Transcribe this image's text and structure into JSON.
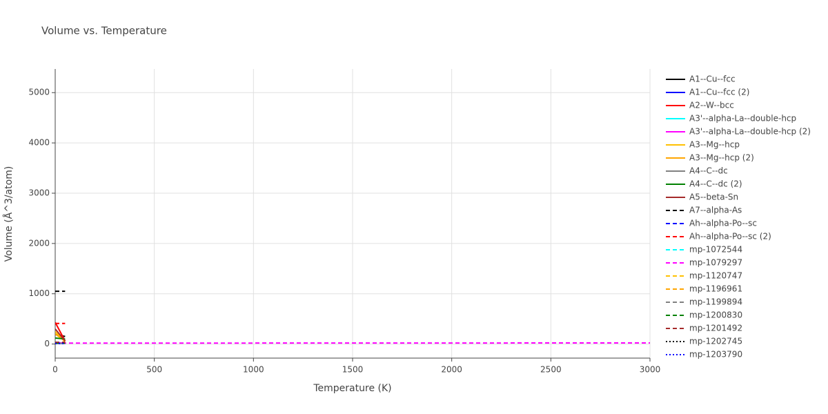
{
  "chart_data": {
    "type": "line",
    "title": "Volume vs. Temperature",
    "x_label": "Temperature (K)",
    "y_label": "Volume (Å^3/atom)",
    "xlim": [
      0,
      3000
    ],
    "ylim": [
      -280,
      5470
    ],
    "xticks": [
      0,
      500,
      1000,
      1500,
      2000,
      2500,
      3000
    ],
    "yticks": [
      0,
      1000,
      2000,
      3000,
      4000,
      5000
    ],
    "grid": true,
    "legend": "right",
    "series": [
      {
        "name": "A1--Cu--fcc",
        "color": "#000000",
        "dash": "solid",
        "x": [
          0,
          50
        ],
        "values": [
          190,
          150
        ]
      },
      {
        "name": "A1--Cu--fcc (2)",
        "color": "#0000ff",
        "dash": "solid",
        "x": [
          0,
          50
        ],
        "values": [
          12,
          12
        ]
      },
      {
        "name": "A2--W--bcc",
        "color": "#ff0000",
        "dash": "solid",
        "x": [
          0,
          50
        ],
        "values": [
          430,
          60
        ]
      },
      {
        "name": "A3'--alpha-La--double-hcp",
        "color": "#00ffff",
        "dash": "solid",
        "x": [
          0,
          50
        ],
        "values": [
          22,
          22
        ]
      },
      {
        "name": "A3'--alpha-La--double-hcp (2)",
        "color": "#ff00ff",
        "dash": "solid",
        "x": [
          0,
          50
        ],
        "values": [
          24,
          24
        ]
      },
      {
        "name": "A3--Mg--hcp",
        "color": "#ffc000",
        "dash": "solid",
        "x": [
          0,
          50
        ],
        "values": [
          250,
          40
        ]
      },
      {
        "name": "A3--Mg--hcp (2)",
        "color": "#ffa500",
        "dash": "solid",
        "x": [
          0,
          50
        ],
        "values": [
          200,
          60
        ]
      },
      {
        "name": "A4--C--dc",
        "color": "#808080",
        "dash": "solid",
        "x": [
          0,
          50
        ],
        "values": [
          15,
          15
        ]
      },
      {
        "name": "A4--C--dc (2)",
        "color": "#008000",
        "dash": "solid",
        "x": [
          0,
          50
        ],
        "values": [
          120,
          100
        ]
      },
      {
        "name": "A5--beta-Sn",
        "color": "#a52a2a",
        "dash": "solid",
        "x": [
          0,
          50
        ],
        "values": [
          300,
          60
        ]
      },
      {
        "name": "A7--alpha-As",
        "color": "#000000",
        "dash": "dash",
        "x": [
          0,
          50
        ],
        "values": [
          1050,
          1050
        ]
      },
      {
        "name": "Ah--alpha-Po--sc",
        "color": "#0000ff",
        "dash": "dash",
        "x": [
          0,
          50
        ],
        "values": [
          30,
          30
        ]
      },
      {
        "name": "Ah--alpha-Po--sc (2)",
        "color": "#ff0000",
        "dash": "dash",
        "x": [
          0,
          50
        ],
        "values": [
          410,
          410
        ]
      },
      {
        "name": "mp-1072544",
        "color": "#00ffff",
        "dash": "dash",
        "x": [
          0,
          50
        ],
        "values": [
          20,
          20
        ]
      },
      {
        "name": "mp-1079297",
        "color": "#ff00ff",
        "dash": "dash",
        "x": [
          0,
          3000
        ],
        "values": [
          18,
          22
        ]
      },
      {
        "name": "mp-1120747",
        "color": "#ffc000",
        "dash": "dash",
        "x": [
          0,
          50
        ],
        "values": [
          25,
          25
        ]
      },
      {
        "name": "mp-1196961",
        "color": "#ffa500",
        "dash": "dash",
        "x": [
          0,
          50
        ],
        "values": [
          28,
          28
        ]
      },
      {
        "name": "mp-1199894",
        "color": "#808080",
        "dash": "dash",
        "x": [
          0,
          50
        ],
        "values": [
          16,
          16
        ]
      },
      {
        "name": "mp-1200830",
        "color": "#008000",
        "dash": "dash",
        "x": [
          0,
          50
        ],
        "values": [
          18,
          18
        ]
      },
      {
        "name": "mp-1201492",
        "color": "#a52a2a",
        "dash": "dash",
        "x": [
          0,
          50
        ],
        "values": [
          35,
          35
        ]
      },
      {
        "name": "mp-1202745",
        "color": "#000000",
        "dash": "dot",
        "x": [
          0,
          50
        ],
        "values": [
          14,
          14
        ]
      },
      {
        "name": "mp-1203790",
        "color": "#0000ff",
        "dash": "dot",
        "x": [
          0,
          50
        ],
        "values": [
          13,
          13
        ]
      }
    ]
  }
}
